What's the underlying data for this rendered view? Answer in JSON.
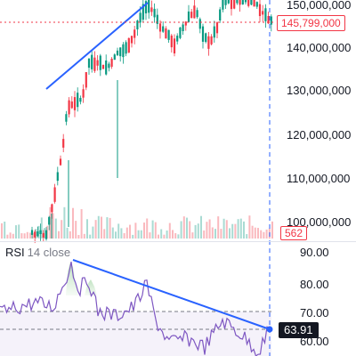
{
  "price_axis": {
    "labels": [
      "150,000,000",
      "140,000,000",
      "130,000,000",
      "120,000,000",
      "110,000,000",
      "100,000,000"
    ],
    "current_price": "145,799,000",
    "current_price_color": "#f23645"
  },
  "volume": {
    "current_value": "562"
  },
  "rsi": {
    "name": "RSI",
    "params": "14 close",
    "levels": [
      "90.00",
      "80.00",
      "70.00",
      "60.00"
    ],
    "current_value": "63.91",
    "line_color": "#7e57c2"
  },
  "colors": {
    "up": "#089981",
    "down": "#f23645",
    "trendline": "#2962ff"
  }
}
